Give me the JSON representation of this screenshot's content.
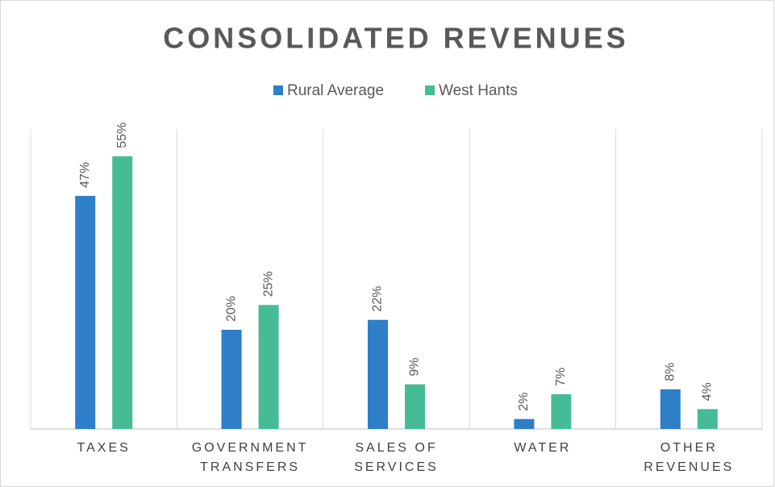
{
  "chart_data": {
    "type": "bar",
    "title": "CONSOLIDATED REVENUES",
    "categories": [
      "TAXES",
      "GOVERNMENT TRANSFERS",
      "SALES OF SERVICES",
      "WATER",
      "OTHER REVENUES"
    ],
    "series": [
      {
        "name": "Rural Average",
        "color": "#2e7ec8",
        "values": [
          47,
          20,
          22,
          2,
          8
        ],
        "value_labels": [
          "47%",
          "20%",
          "22%",
          "2%",
          "8%"
        ]
      },
      {
        "name": "West Hants",
        "color": "#45bc96",
        "values": [
          55,
          25,
          9,
          7,
          4
        ],
        "value_labels": [
          "55%",
          "25%",
          "9%",
          "7%",
          "4%"
        ]
      }
    ],
    "legend": "top",
    "grid": true
  }
}
